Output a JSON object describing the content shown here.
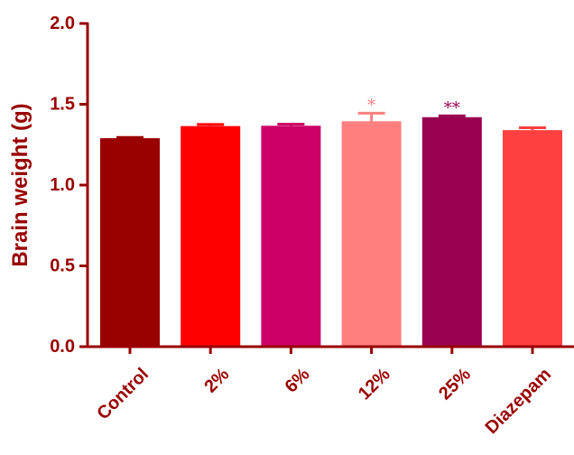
{
  "chart_data": {
    "type": "bar",
    "title": "",
    "xlabel": "",
    "ylabel": "Brain weight (g)",
    "ylim": [
      0,
      2.0
    ],
    "yticks": [
      "0.0",
      "0.5",
      "1.0",
      "1.5",
      "2.0"
    ],
    "categories": [
      "Control",
      "2%",
      "6%",
      "12%",
      "25%",
      "Diazepam"
    ],
    "values": [
      1.29,
      1.365,
      1.367,
      1.395,
      1.42,
      1.34
    ],
    "errors": [
      0.005,
      0.01,
      0.01,
      0.05,
      0.008,
      0.015
    ],
    "significance": [
      "",
      "",
      "",
      "*",
      "**",
      ""
    ],
    "bar_colors": [
      "#990000",
      "#ff0000",
      "#cc0066",
      "#ff7f7f",
      "#990050",
      "#ff4040"
    ],
    "axis_color": "#990000",
    "grid": false,
    "legend": "none"
  }
}
